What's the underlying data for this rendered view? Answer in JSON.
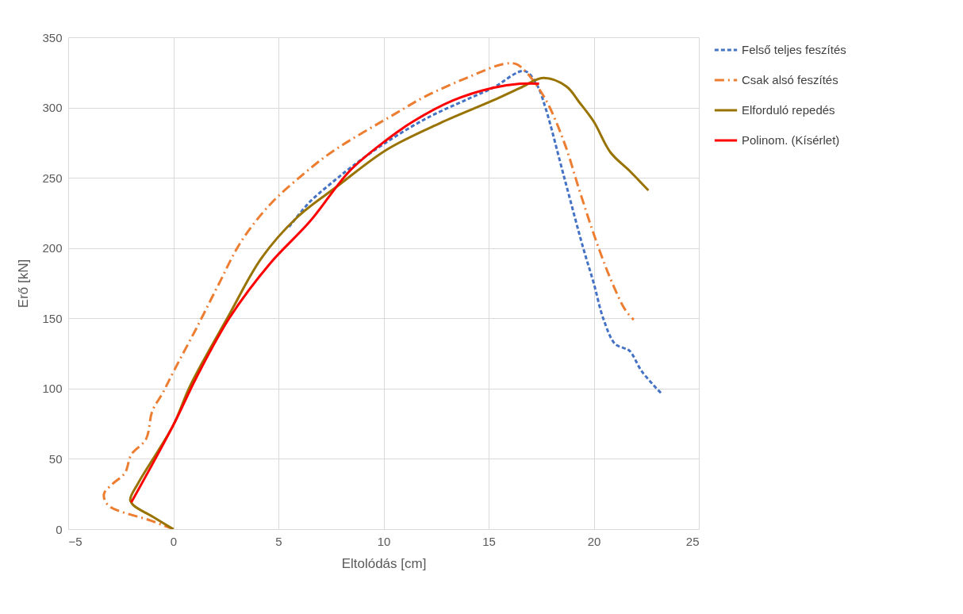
{
  "chart_data": {
    "type": "line",
    "xlabel": "Eltolódás [cm]",
    "ylabel": "Erő [kN]",
    "xlim": [
      -5,
      25
    ],
    "xticks": [
      -5,
      0,
      5,
      10,
      15,
      20,
      25
    ],
    "ylim": [
      0,
      350
    ],
    "yticks": [
      0,
      50,
      100,
      150,
      200,
      250,
      300,
      350
    ],
    "grid": true,
    "legend": "right",
    "series": [
      {
        "name": "Felső teljes feszítés",
        "color": "#4472c4",
        "line_style": "dashed",
        "x": [
          5.5,
          6.5,
          7.5,
          8.5,
          10,
          12,
          14,
          15.2,
          16.7,
          17.3,
          17.7,
          18.6,
          19.5,
          20.0,
          20.45,
          21.0,
          21.4,
          21.7,
          22.3,
          23.25
        ],
        "values": [
          215,
          233,
          246,
          258,
          274,
          292,
          306,
          314,
          326,
          316,
          300,
          250,
          200,
          175,
          150,
          132,
          129,
          127,
          112,
          96
        ]
      },
      {
        "name": "Csak alsó feszítés",
        "color": "#ed7d31",
        "line_style": "dashdot",
        "x": [
          0,
          -1.06,
          -3.1,
          -3.3,
          -2.9,
          -2.3,
          -2.0,
          -1.3,
          -1.0,
          -0.5,
          0.04,
          1.1,
          2.15,
          3.2,
          4.6,
          6.3,
          7.6,
          10.6,
          12.0,
          14.1,
          15.7,
          16.3,
          16.8,
          17.7,
          18.6,
          19.3,
          20.0,
          20.8,
          21.5,
          21.9
        ],
        "values": [
          0,
          6,
          17,
          25,
          32,
          40,
          53,
          64,
          84,
          97,
          113,
          143,
          174,
          204,
          231,
          254,
          269,
          296,
          308,
          322,
          331,
          331,
          325,
          306,
          275,
          242,
          210,
          178,
          156,
          149
        ]
      },
      {
        "name": "Elforduló repedés",
        "color": "#997300",
        "line_style": "solid",
        "x": [
          0,
          -1.0,
          -1.9,
          -2.05,
          -1.66,
          0,
          0.8,
          2.6,
          4.2,
          5.9,
          7.8,
          10.15,
          12.7,
          15.2,
          16.5,
          17.6,
          18.7,
          19.3,
          20.0,
          20.8,
          21.7,
          22.6
        ],
        "values": [
          0,
          9,
          17,
          21,
          33,
          74,
          102,
          151,
          193,
          222,
          244,
          270,
          289,
          305,
          314,
          321,
          315,
          304,
          290,
          268,
          255,
          241
        ]
      },
      {
        "name": "Polinom. (Kísérlet)",
        "color": "#ff0000",
        "line_style": "solid",
        "x": [
          -2.0,
          0,
          1.1,
          2.7,
          4.6,
          6.5,
          8.4,
          10.15,
          11.4,
          13.3,
          15.2,
          16.5,
          17.4
        ],
        "values": [
          19,
          74,
          108,
          151,
          189,
          219,
          255,
          277,
          290,
          305,
          314,
          317,
          317
        ]
      }
    ]
  }
}
